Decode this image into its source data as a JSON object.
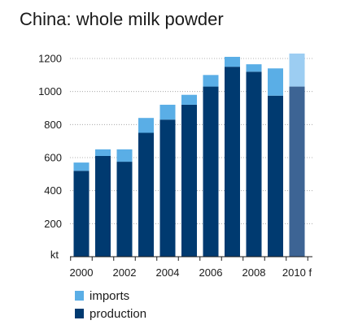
{
  "chart_data": {
    "type": "bar",
    "stacked": true,
    "title": "China: whole milk powder",
    "unit_label": "kt",
    "categories": [
      "2000",
      "2001",
      "2002",
      "2003",
      "2004",
      "2005",
      "2006",
      "2007",
      "2008",
      "2009",
      "2010 f"
    ],
    "x_tick_labels": [
      "2000",
      "",
      "2002",
      "",
      "2004",
      "",
      "2006",
      "",
      "2008",
      "",
      "2010 f"
    ],
    "forecast_category": "2010 f",
    "y_ticks": [
      200,
      400,
      600,
      800,
      1000,
      1200
    ],
    "ylim": [
      0,
      1250
    ],
    "grid": true,
    "legend_position": "bottom-left",
    "series": [
      {
        "name": "production",
        "color": "#003a70",
        "forecast_color": "#3d6494",
        "values": [
          520,
          610,
          575,
          750,
          830,
          920,
          1030,
          1150,
          1120,
          975,
          1030
        ]
      },
      {
        "name": "imports",
        "color": "#5aaee6",
        "forecast_color": "#9ccdf2",
        "values": [
          50,
          40,
          75,
          90,
          90,
          60,
          70,
          60,
          45,
          165,
          200
        ]
      }
    ],
    "legend": [
      {
        "label": "imports",
        "color": "#5aaee6"
      },
      {
        "label": "production",
        "color": "#003a70"
      }
    ]
  }
}
